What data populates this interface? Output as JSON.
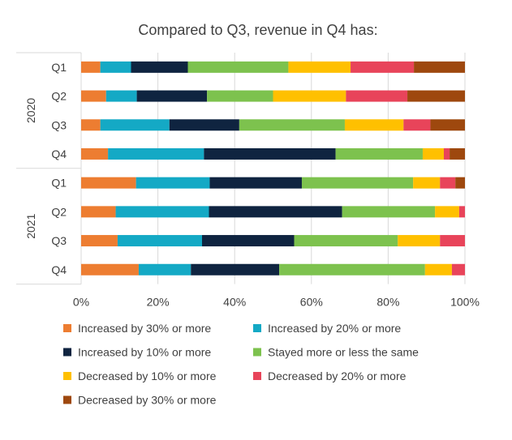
{
  "chart_data": {
    "type": "bar",
    "orientation": "horizontal",
    "stacked": "percent",
    "title": "Compared to Q3, revenue in Q4 has:",
    "xlim": [
      0,
      100
    ],
    "x_ticks": [
      "0%",
      "20%",
      "40%",
      "60%",
      "80%",
      "100%"
    ],
    "grid": true,
    "legend_position": "bottom",
    "groups": [
      {
        "label": "2020",
        "categories": [
          "Q1",
          "Q2",
          "Q3",
          "Q4"
        ]
      },
      {
        "label": "2021",
        "categories": [
          "Q1",
          "Q2",
          "Q3",
          "Q4"
        ]
      }
    ],
    "series": [
      {
        "name": "Increased by 30% or more",
        "color": "#ED7D31",
        "values": [
          5,
          6.5,
          5,
          7,
          14.3,
          9,
          9.5,
          15
        ]
      },
      {
        "name": "Increased by 20% or more",
        "color": "#14A9C5",
        "values": [
          8,
          8,
          18,
          25,
          19.2,
          24.3,
          22,
          13.6
        ]
      },
      {
        "name": "Increased by 10% or more",
        "color": "#0F2440",
        "values": [
          14.8,
          18.3,
          18.2,
          34.3,
          24,
          34.7,
          24,
          23
        ]
      },
      {
        "name": "Stayed more or less the same",
        "color": "#7DC24E",
        "values": [
          26.2,
          17.2,
          27.5,
          22.7,
          29,
          24.2,
          27,
          38
        ]
      },
      {
        "name": "Decreased by 10% or more",
        "color": "#FFC000",
        "values": [
          16.2,
          19,
          15.3,
          5.5,
          7,
          6.3,
          11,
          7
        ]
      },
      {
        "name": "Decreased by 20% or more",
        "color": "#E8445A",
        "values": [
          16.5,
          16,
          7,
          1.5,
          4,
          1.5,
          6.5,
          3.4
        ]
      },
      {
        "name": "Decreased by 30% or more",
        "color": "#9E480E",
        "values": [
          13.3,
          15,
          9,
          4,
          2.5,
          0,
          0,
          0
        ]
      }
    ]
  }
}
